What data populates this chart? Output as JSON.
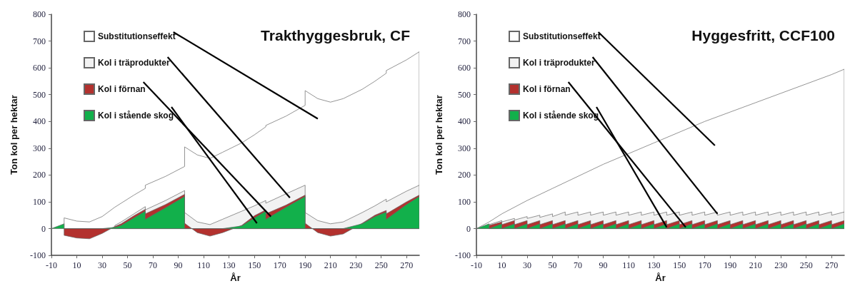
{
  "chart_data": [
    {
      "type": "area",
      "title": "Trakthyggesbruk, CF",
      "xlabel": "År",
      "ylabel": "Ton kol per hektar",
      "xlim": [
        -10,
        280
      ],
      "xticks": [
        -10,
        10,
        30,
        50,
        70,
        90,
        110,
        130,
        150,
        170,
        190,
        210,
        230,
        250,
        270
      ],
      "ylim": [
        -100,
        800
      ],
      "yticks": [
        -100,
        0,
        100,
        200,
        300,
        400,
        500,
        600,
        700,
        800
      ],
      "grid": false,
      "legend": "top left",
      "x": [
        -10,
        0,
        0,
        10,
        20,
        30,
        40,
        45,
        55,
        64,
        64,
        80,
        95,
        95,
        105,
        115,
        125,
        140,
        150,
        159,
        159,
        175,
        190,
        190,
        200,
        210,
        220,
        235,
        245,
        254,
        254,
        270,
        280
      ],
      "series": [
        {
          "name": "Substitutionseffekt",
          "color": "#ffffff",
          "values": [
            null,
            null,
            40,
            28,
            25,
            45,
            80,
            95,
            125,
            150,
            162,
            195,
            232,
            305,
            275,
            262,
            285,
            320,
            350,
            380,
            385,
            420,
            460,
            515,
            485,
            472,
            485,
            520,
            550,
            580,
            590,
            630,
            660
          ]
        },
        {
          "name": "Kol i träprodukter",
          "color": "#f2f2f2",
          "values": [
            null,
            null,
            null,
            null,
            null,
            null,
            12,
            25,
            55,
            82,
            70,
            105,
            142,
            60,
            25,
            15,
            35,
            65,
            85,
            105,
            95,
            130,
            162,
            60,
            30,
            18,
            25,
            60,
            85,
            110,
            100,
            140,
            162
          ]
        },
        {
          "name": "Kol i förnan",
          "color": "#b3312e",
          "values": [
            null,
            null,
            -25,
            -35,
            -38,
            -18,
            8,
            18,
            48,
            72,
            55,
            90,
            128,
            20,
            -15,
            -28,
            -15,
            12,
            48,
            70,
            55,
            88,
            125,
            20,
            -15,
            -28,
            -20,
            20,
            50,
            68,
            55,
            100,
            125
          ]
        },
        {
          "name": "Kol i stående skog",
          "color": "#12b04b",
          "values": [
            0,
            18,
            0,
            0,
            0,
            0,
            5,
            12,
            40,
            65,
            35,
            78,
            120,
            0,
            0,
            0,
            0,
            10,
            40,
            65,
            35,
            80,
            120,
            0,
            0,
            0,
            0,
            18,
            45,
            62,
            35,
            90,
            120
          ]
        }
      ]
    },
    {
      "type": "area",
      "title": "Hyggesfritt, CCF100",
      "xlabel": "År",
      "ylabel": "Ton kol per hektar",
      "xlim": [
        -10,
        280
      ],
      "xticks": [
        -10,
        10,
        30,
        50,
        70,
        90,
        110,
        130,
        150,
        170,
        190,
        210,
        230,
        250,
        270
      ],
      "ylim": [
        -100,
        800
      ],
      "yticks": [
        -100,
        0,
        100,
        200,
        300,
        400,
        500,
        600,
        700,
        800
      ],
      "grid": false,
      "legend": "top left",
      "x": [
        -10,
        0,
        0,
        10,
        10,
        20,
        20,
        30,
        30,
        40,
        40,
        50,
        50,
        60,
        60,
        70,
        70,
        80,
        80,
        90,
        90,
        100,
        100,
        110,
        110,
        120,
        120,
        130,
        130,
        140,
        140,
        150,
        150,
        160,
        160,
        170,
        170,
        180,
        180,
        190,
        190,
        200,
        200,
        210,
        210,
        220,
        220,
        230,
        230,
        240,
        240,
        250,
        250,
        260,
        260,
        270,
        270,
        280
      ],
      "series": [
        {
          "name": "Substitutionseffekt",
          "color": "#ffffff",
          "x": [
            -10,
            0,
            10,
            30,
            50,
            70,
            90,
            110,
            130,
            150,
            170,
            190,
            210,
            230,
            250,
            270,
            280
          ],
          "values": [
            0,
            25,
            55,
            105,
            150,
            195,
            240,
            280,
            320,
            360,
            400,
            435,
            470,
            505,
            540,
            575,
            595
          ]
        },
        {
          "name": "Kol i träprodukter",
          "color": "#f2f2f2",
          "values": [
            null,
            null,
            15,
            30,
            25,
            38,
            32,
            45,
            38,
            50,
            42,
            55,
            45,
            62,
            50,
            62,
            50,
            62,
            50,
            62,
            50,
            62,
            50,
            62,
            50,
            62,
            50,
            62,
            50,
            62,
            50,
            62,
            50,
            62,
            50,
            62,
            50,
            62,
            50,
            62,
            50,
            62,
            50,
            62,
            50,
            62,
            50,
            62,
            50,
            62,
            50,
            62,
            50,
            62,
            50,
            62,
            50,
            62
          ]
        },
        {
          "name": "Kol i förnan",
          "color": "#b3312e",
          "values": [
            null,
            null,
            12,
            25,
            15,
            30,
            15,
            30,
            15,
            30,
            15,
            30,
            15,
            30,
            15,
            30,
            15,
            30,
            15,
            30,
            15,
            30,
            15,
            30,
            15,
            30,
            15,
            30,
            15,
            30,
            15,
            30,
            15,
            30,
            15,
            30,
            15,
            30,
            15,
            30,
            15,
            30,
            15,
            30,
            15,
            30,
            15,
            30,
            15,
            30,
            15,
            30,
            15,
            30,
            15,
            30,
            15,
            30
          ]
        },
        {
          "name": "Kol i stående skog",
          "color": "#12b04b",
          "values": [
            0,
            18,
            0,
            18,
            0,
            18,
            0,
            18,
            0,
            18,
            0,
            18,
            0,
            18,
            0,
            18,
            0,
            18,
            0,
            18,
            0,
            18,
            0,
            18,
            0,
            18,
            0,
            18,
            0,
            18,
            0,
            18,
            0,
            18,
            0,
            18,
            0,
            18,
            0,
            18,
            0,
            18,
            0,
            18,
            0,
            18,
            0,
            18,
            0,
            18,
            0,
            18,
            0,
            18,
            0,
            18,
            0,
            18
          ]
        }
      ]
    }
  ]
}
